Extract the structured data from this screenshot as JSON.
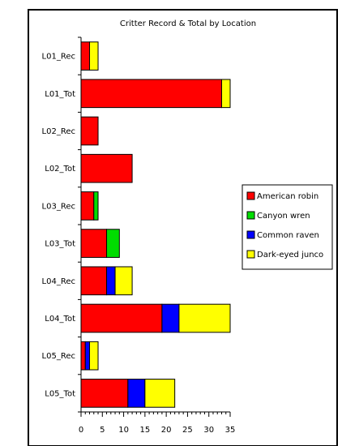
{
  "chart_data": {
    "type": "bar",
    "orientation": "horizontal",
    "stacked": true,
    "title": "Critter Record & Total by Location",
    "categories": [
      "L01_Rec",
      "L01_Tot",
      "L02_Rec",
      "L02_Tot",
      "L03_Rec",
      "L03_Tot",
      "L04_Rec",
      "L04_Tot",
      "L05_Rec",
      "L05_Tot"
    ],
    "series": [
      {
        "name": "American robin",
        "color": "#ff0000",
        "values": [
          2,
          33,
          4,
          12,
          3,
          6,
          6,
          19,
          1,
          11
        ]
      },
      {
        "name": "Canyon wren",
        "color": "#00dd00",
        "values": [
          0,
          0,
          0,
          0,
          1,
          3,
          0,
          0,
          0,
          0
        ]
      },
      {
        "name": "Common raven",
        "color": "#0000ff",
        "values": [
          0,
          0,
          0,
          0,
          0,
          0,
          2,
          4,
          1,
          4
        ]
      },
      {
        "name": "Dark-eyed junco",
        "color": "#ffff00",
        "values": [
          2,
          2,
          0,
          0,
          0,
          0,
          4,
          12,
          2,
          7
        ]
      }
    ],
    "xlim": [
      0,
      35
    ],
    "xticks": [
      "0",
      "5",
      "10",
      "15",
      "20",
      "25",
      "30",
      "35"
    ],
    "legend_position": "right",
    "grid": false
  }
}
